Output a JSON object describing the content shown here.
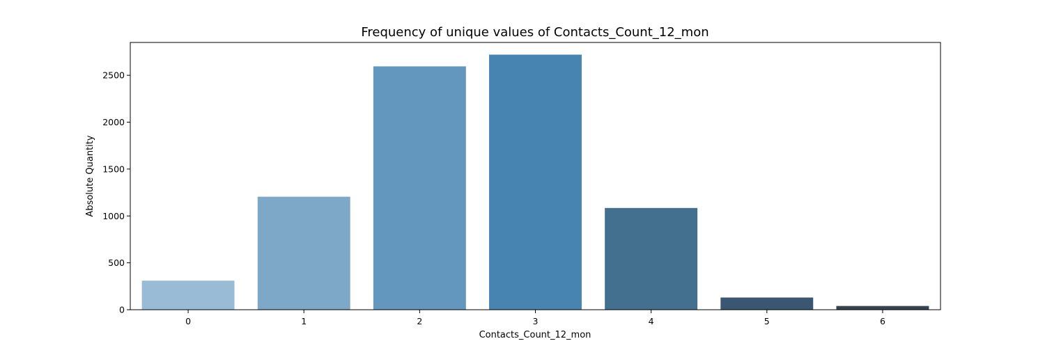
{
  "chart_data": {
    "type": "bar",
    "title": "Frequency of unique values of Contacts_Count_12_mon",
    "xlabel": "Contacts_Count_12_mon",
    "ylabel": "Absolute Quantity",
    "categories": [
      "0",
      "1",
      "2",
      "3",
      "4",
      "5",
      "6"
    ],
    "values": [
      310,
      1205,
      2595,
      2720,
      1085,
      130,
      40
    ],
    "colors": [
      "#9abbd5",
      "#7da8c7",
      "#6397bd",
      "#4884b2",
      "#44708f",
      "#3b5670",
      "#354450"
    ],
    "ylim": [
      0,
      2850
    ],
    "yticks": [
      0,
      500,
      1000,
      1500,
      2000,
      2500
    ],
    "grid": false,
    "legend": false
  }
}
